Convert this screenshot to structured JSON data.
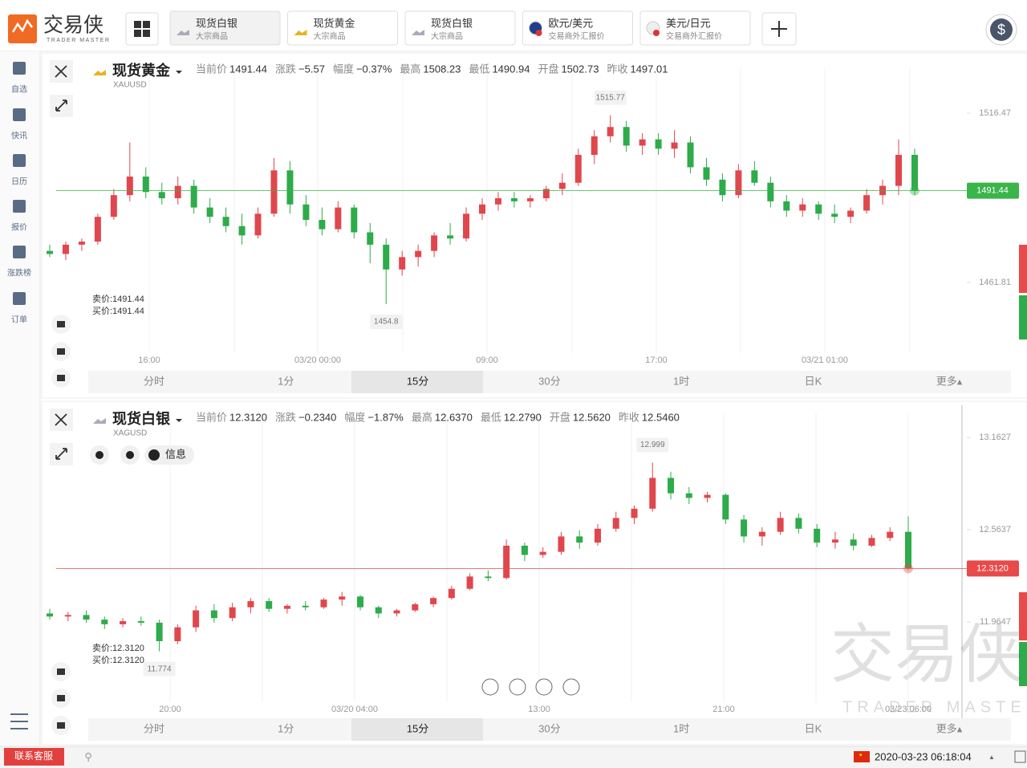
{
  "ui": {
    "logo": {
      "name": "交易侠",
      "sub": "TRADER MASTER"
    },
    "tabs": [
      {
        "title": "现货白银",
        "sub": "大宗商品"
      },
      {
        "title": "现货黄金",
        "sub": "大宗商品"
      },
      {
        "title": "现货白银",
        "sub": "大宗商品"
      },
      {
        "title": "欧元/美元",
        "sub": "交易商外汇报价"
      },
      {
        "title": "美元/日元",
        "sub": "交易商外汇报价"
      }
    ],
    "sidebar": [
      "自选",
      "快讯",
      "日历",
      "报价",
      "涨跌榜",
      "订单"
    ],
    "watermark": {
      "name": "交易侠",
      "sub": "TRADER MASTER"
    },
    "info_button": "信息",
    "support": "联系客服",
    "clock": "2020-03-23 06:18:04"
  },
  "chart_data": [
    {
      "type": "candlestick",
      "name": "现货黄金",
      "code": "XAUUSD",
      "stats": [
        {
          "label": "当前价",
          "value": "1491.44",
          "color": "#2db84d"
        },
        {
          "label": "涨跌",
          "value": "−5.57",
          "color": "#2db84d"
        },
        {
          "label": "幅度",
          "value": "−0.37%",
          "color": "#2db84d"
        },
        {
          "label": "最高",
          "value": "1508.23"
        },
        {
          "label": "最低",
          "value": "1490.94"
        },
        {
          "label": "开盘",
          "value": "1502.73"
        },
        {
          "label": "昨收",
          "value": "1497.01"
        }
      ],
      "bid": "卖价:1491.44",
      "ask": "买价:1491.44",
      "high_label": "1515.77",
      "low_label": "1454.8",
      "current_price": 1491.44,
      "current_color": "#39b54a",
      "up_color": "#e0474c",
      "down_color": "#2eab4a",
      "ylim": [
        1439.0,
        1524.5
      ],
      "yticks": [
        1516.47,
        1461.81
      ],
      "x_labels": [
        "16:00",
        "03/20 00:00",
        "09:00",
        "17:00",
        "03/21 01:00"
      ],
      "periods": [
        "分时",
        "1分",
        "15分",
        "30分",
        "1时",
        "日K",
        "更多▴"
      ],
      "selected_period": 2,
      "open": [
        1472,
        1471,
        1474,
        1475,
        1483,
        1490,
        1496,
        1491,
        1489,
        1493,
        1486,
        1483,
        1480,
        1477,
        1484,
        1498,
        1487,
        1482,
        1479,
        1486,
        1478,
        1474,
        1466,
        1470,
        1472,
        1477,
        1476,
        1484,
        1487,
        1489,
        1488,
        1489,
        1492,
        1494,
        1503,
        1509,
        1512,
        1506,
        1508,
        1505,
        1507,
        1499,
        1495,
        1490,
        1498,
        1494,
        1488,
        1485,
        1487,
        1484,
        1483,
        1485,
        1490,
        1493,
        1503
      ],
      "high": [
        1474,
        1475,
        1476,
        1484,
        1492,
        1507,
        1499,
        1494,
        1496,
        1495,
        1489,
        1486,
        1484,
        1486,
        1502,
        1501,
        1490,
        1486,
        1488,
        1487,
        1481,
        1476,
        1472,
        1474,
        1478,
        1481,
        1486,
        1489,
        1491,
        1491,
        1490,
        1493,
        1497,
        1505,
        1511,
        1515.77,
        1514,
        1510,
        1510,
        1511,
        1509,
        1502,
        1497,
        1500,
        1501,
        1496,
        1490,
        1489,
        1488,
        1487,
        1486,
        1492,
        1495,
        1508,
        1505
      ],
      "low": [
        1470,
        1469,
        1472,
        1474,
        1482,
        1488,
        1489,
        1487,
        1487,
        1484,
        1481,
        1478,
        1474,
        1476,
        1483,
        1484,
        1480,
        1477,
        1478,
        1476,
        1468,
        1454.8,
        1464,
        1467,
        1470,
        1474,
        1475,
        1482,
        1485,
        1486,
        1486,
        1488,
        1490,
        1493,
        1500,
        1507,
        1504,
        1503,
        1503,
        1502,
        1497,
        1493,
        1488,
        1489,
        1493,
        1486,
        1483,
        1483,
        1482,
        1481,
        1481,
        1484,
        1487,
        1490,
        1490
      ],
      "close": [
        1471,
        1474,
        1475,
        1483,
        1490,
        1496,
        1491,
        1489,
        1493,
        1486,
        1483,
        1480,
        1477,
        1484,
        1498,
        1487,
        1482,
        1479,
        1486,
        1478,
        1474,
        1466,
        1470,
        1472,
        1477,
        1476,
        1484,
        1487,
        1489,
        1488,
        1489,
        1492,
        1494,
        1503,
        1509,
        1512,
        1506,
        1508,
        1505,
        1507,
        1499,
        1495,
        1490,
        1498,
        1494,
        1488,
        1485,
        1487,
        1484,
        1483,
        1485,
        1490,
        1493,
        1503,
        1491.44
      ]
    },
    {
      "type": "candlestick",
      "name": "现货白银",
      "code": "XAGUSD",
      "stats": [
        {
          "label": "当前价",
          "value": "12.3120",
          "color": "#2db84d"
        },
        {
          "label": "涨跌",
          "value": "−0.2340",
          "color": "#2db84d"
        },
        {
          "label": "幅度",
          "value": "−1.87%",
          "color": "#2db84d"
        },
        {
          "label": "最高",
          "value": "12.6370"
        },
        {
          "label": "最低",
          "value": "12.2790"
        },
        {
          "label": "开盘",
          "value": "12.5620"
        },
        {
          "label": "昨收",
          "value": "12.5460"
        }
      ],
      "bid": "卖价:12.3120",
      "ask": "买价:12.3120",
      "high_label": "12.999",
      "low_label": "11.774",
      "current_price": {
        "value": 12.312,
        "label": "12.3120"
      },
      "current_color": "#e84a4a",
      "up_color": "#e0474c",
      "down_color": "#2eab4a",
      "ylim": [
        11.444,
        13.189
      ],
      "yticks": [
        13.1627,
        12.5637,
        11.9647
      ],
      "x_labels": [
        "20:00",
        "03/20 04:00",
        "13:00",
        "21:00",
        "03/23 06:00"
      ],
      "periods": [
        "分时",
        "1分",
        "15分",
        "30分",
        "1时",
        "日K",
        "更多▴"
      ],
      "selected_period": 2,
      "open": [
        12.02,
        12.0,
        12.01,
        11.98,
        11.95,
        11.97,
        11.96,
        11.84,
        11.93,
        12.04,
        11.99,
        12.06,
        12.1,
        12.05,
        12.07,
        12.06,
        12.11,
        12.13,
        12.06,
        12.02,
        12.04,
        12.08,
        12.12,
        12.18,
        12.26,
        12.25,
        12.46,
        12.4,
        12.42,
        12.52,
        12.48,
        12.57,
        12.64,
        12.7,
        12.9,
        12.8,
        12.77,
        12.79,
        12.63,
        12.52,
        12.55,
        12.64,
        12.57,
        12.48,
        12.5,
        12.46,
        12.51,
        12.55
      ],
      "high": [
        12.05,
        12.03,
        12.04,
        12.0,
        11.99,
        12.0,
        11.98,
        11.95,
        12.07,
        12.08,
        12.09,
        12.12,
        12.12,
        12.08,
        12.1,
        12.12,
        12.16,
        12.14,
        12.07,
        12.05,
        12.09,
        12.13,
        12.2,
        12.28,
        12.3,
        12.5,
        12.48,
        12.45,
        12.55,
        12.56,
        12.6,
        12.68,
        12.72,
        12.999,
        12.94,
        12.84,
        12.81,
        12.8,
        12.66,
        12.58,
        12.68,
        12.67,
        12.6,
        12.55,
        12.54,
        12.53,
        12.58,
        12.65
      ],
      "low": [
        11.98,
        11.97,
        11.96,
        11.92,
        11.93,
        11.94,
        11.774,
        11.82,
        11.9,
        11.96,
        11.97,
        12.02,
        12.03,
        12.02,
        12.04,
        12.05,
        12.07,
        12.04,
        11.99,
        12.0,
        12.03,
        12.06,
        12.11,
        12.17,
        12.23,
        12.24,
        12.36,
        12.38,
        12.4,
        12.44,
        12.46,
        12.55,
        12.6,
        12.68,
        12.76,
        12.73,
        12.74,
        12.6,
        12.48,
        12.46,
        12.53,
        12.54,
        12.45,
        12.44,
        12.43,
        12.45,
        12.49,
        12.3
      ],
      "close": [
        12.0,
        12.01,
        11.98,
        11.95,
        11.97,
        11.96,
        11.84,
        11.93,
        12.04,
        11.99,
        12.06,
        12.1,
        12.05,
        12.07,
        12.06,
        12.11,
        12.13,
        12.06,
        12.02,
        12.04,
        12.08,
        12.12,
        12.18,
        12.26,
        12.25,
        12.46,
        12.4,
        12.42,
        12.52,
        12.48,
        12.57,
        12.64,
        12.7,
        12.9,
        12.8,
        12.77,
        12.79,
        12.63,
        12.52,
        12.55,
        12.64,
        12.57,
        12.48,
        12.5,
        12.46,
        12.51,
        12.55,
        12.312
      ]
    }
  ]
}
